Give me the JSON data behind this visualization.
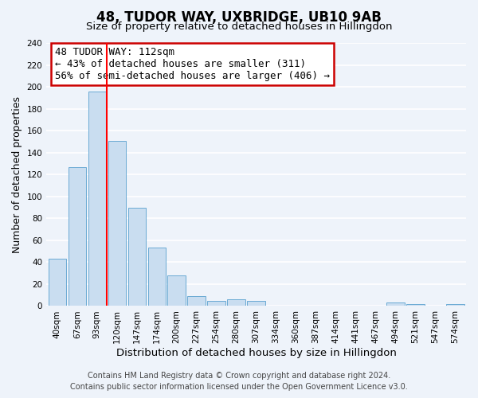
{
  "title": "48, TUDOR WAY, UXBRIDGE, UB10 9AB",
  "subtitle": "Size of property relative to detached houses in Hillingdon",
  "xlabel": "Distribution of detached houses by size in Hillingdon",
  "ylabel": "Number of detached properties",
  "bar_labels": [
    "40sqm",
    "67sqm",
    "93sqm",
    "120sqm",
    "147sqm",
    "174sqm",
    "200sqm",
    "227sqm",
    "254sqm",
    "280sqm",
    "307sqm",
    "334sqm",
    "360sqm",
    "387sqm",
    "414sqm",
    "441sqm",
    "467sqm",
    "494sqm",
    "521sqm",
    "547sqm",
    "574sqm"
  ],
  "bar_values": [
    43,
    127,
    196,
    151,
    90,
    53,
    28,
    9,
    5,
    6,
    5,
    0,
    0,
    0,
    0,
    0,
    0,
    3,
    2,
    0,
    2
  ],
  "bar_color": "#c9ddf0",
  "bar_edge_color": "#6aaad4",
  "vline_color": "red",
  "vline_x_index": 2.5,
  "annotation_title": "48 TUDOR WAY: 112sqm",
  "annotation_line1": "← 43% of detached houses are smaller (311)",
  "annotation_line2": "56% of semi-detached houses are larger (406) →",
  "annotation_box_color": "white",
  "annotation_box_edge": "#cc0000",
  "ylim": [
    0,
    240
  ],
  "yticks": [
    0,
    20,
    40,
    60,
    80,
    100,
    120,
    140,
    160,
    180,
    200,
    220,
    240
  ],
  "footer_line1": "Contains HM Land Registry data © Crown copyright and database right 2024.",
  "footer_line2": "Contains public sector information licensed under the Open Government Licence v3.0.",
  "background_color": "#eef3fa",
  "grid_color": "white",
  "title_fontsize": 12,
  "subtitle_fontsize": 9.5,
  "ylabel_fontsize": 9,
  "xlabel_fontsize": 9.5,
  "tick_fontsize": 7.5,
  "footer_fontsize": 7,
  "ann_fontsize": 9
}
